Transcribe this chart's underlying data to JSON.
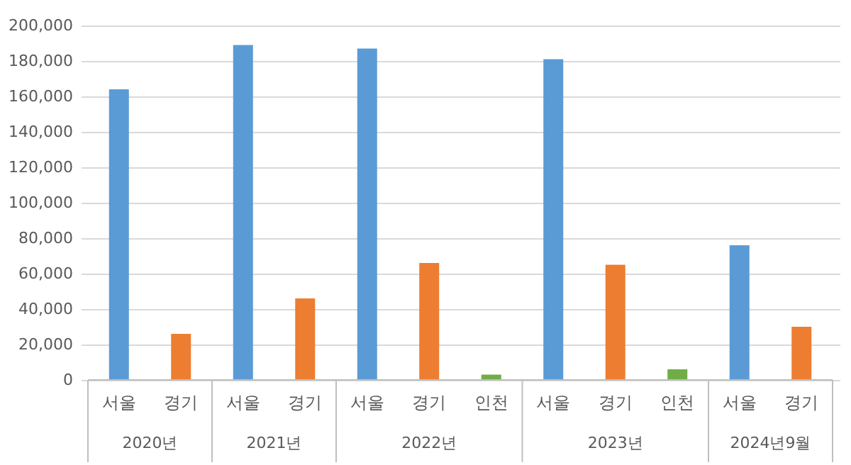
{
  "chart_data": {
    "type": "bar",
    "categories": [
      "서울",
      "경기",
      "서울",
      "경기",
      "서울",
      "경기",
      "인천",
      "서울",
      "경기",
      "인천",
      "서울",
      "경기"
    ],
    "values": [
      164000,
      26000,
      189000,
      46000,
      187000,
      66000,
      3000,
      181000,
      65000,
      6000,
      76000,
      30000
    ],
    "colors": [
      "#5b9bd5",
      "#ed7d31",
      "#5b9bd5",
      "#ed7d31",
      "#5b9bd5",
      "#ed7d31",
      "#70ad47",
      "#5b9bd5",
      "#ed7d31",
      "#70ad47",
      "#5b9bd5",
      "#ed7d31"
    ],
    "annotations": [
      "2020년",
      "2021년",
      "2022년",
      "2023년",
      "2024년9월"
    ],
    "ylim": [
      0,
      200000
    ],
    "yticks": [
      0,
      {
        "value": 20000,
        "label": "20,000"
      },
      {
        "value": 40000,
        "label": "40,000"
      },
      {
        "value": 60000,
        "label": "60,000"
      },
      {
        "value": 80000,
        "label": "80,000"
      },
      {
        "value": 100000,
        "label": "100,000"
      },
      {
        "value": 120000,
        "label": "120,000"
      },
      {
        "value": 140000,
        "label": "140,000"
      },
      {
        "value": 160000,
        "label": "160,000"
      },
      {
        "value": 180000,
        "label": "180,000"
      },
      {
        "value": 200000,
        "label": "200,000"
      }
    ],
    "grid": "y"
  }
}
